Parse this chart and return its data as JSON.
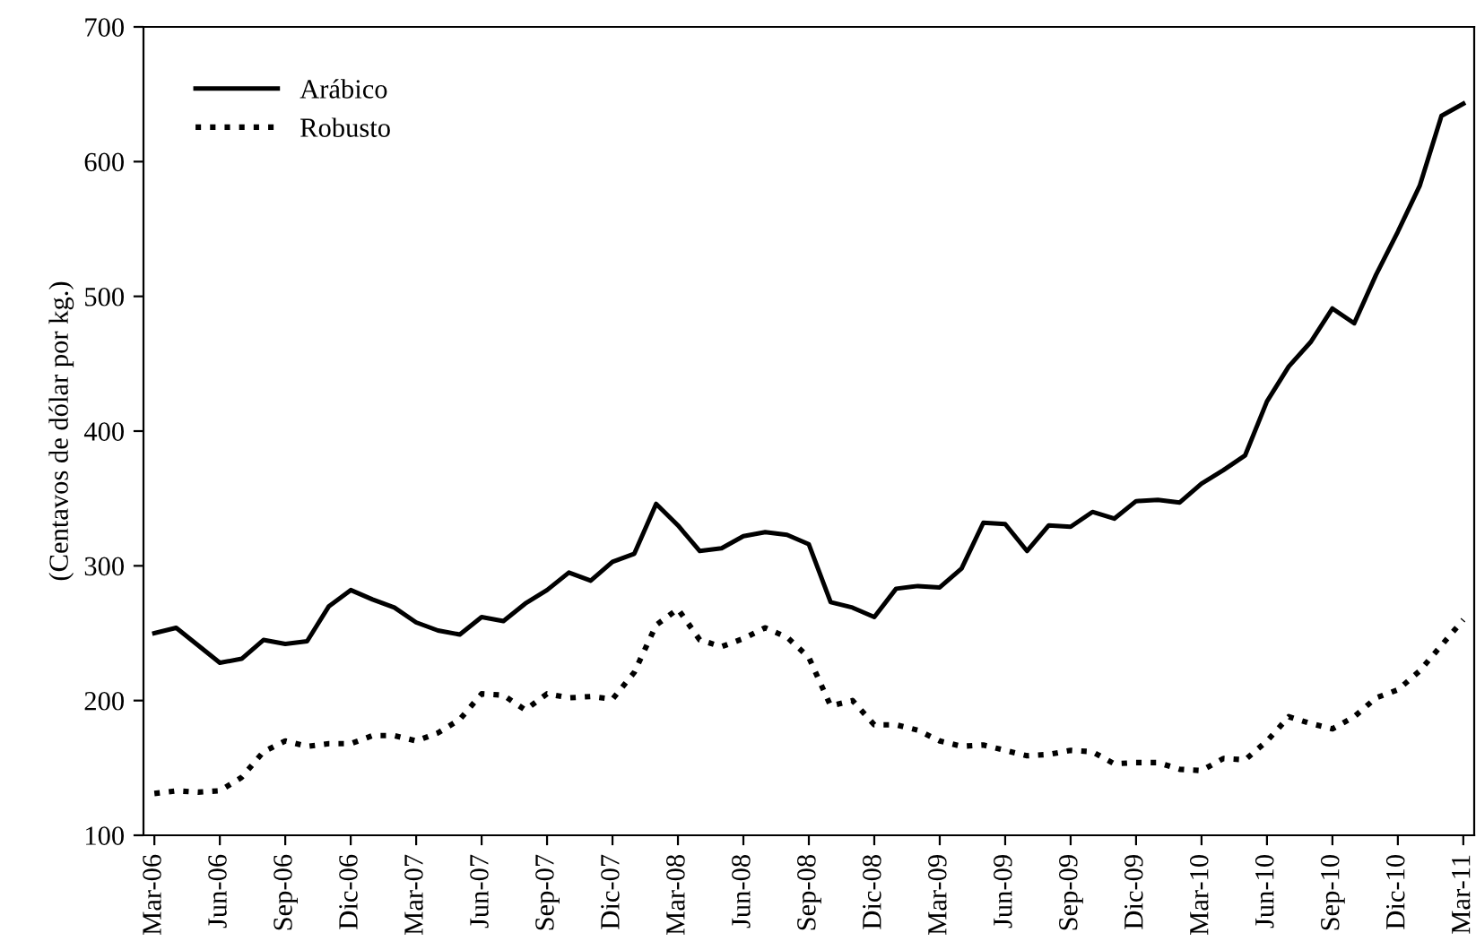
{
  "chart_data": {
    "type": "line",
    "ylabel": "(Centavos de dólar por kg.)",
    "categories": [
      "Mar-06",
      null,
      null,
      "Jun-06",
      null,
      null,
      "Sep-06",
      null,
      null,
      "Dic-06",
      null,
      null,
      "Mar-07",
      null,
      null,
      "Jun-07",
      null,
      null,
      "Sep-07",
      null,
      null,
      "Dic-07",
      null,
      null,
      "Mar-08",
      null,
      null,
      "Jun-08",
      null,
      null,
      "Sep-08",
      null,
      null,
      "Dic-08",
      null,
      null,
      "Mar-09",
      null,
      null,
      "Jun-09",
      null,
      null,
      "Sep-09",
      null,
      null,
      "Dic-09",
      null,
      null,
      "Mar-10",
      null,
      null,
      "Jun-10",
      null,
      null,
      "Sep-10",
      null,
      null,
      "Dic-10",
      null,
      null,
      "Mar-11"
    ],
    "series": [
      {
        "name": "Arábico",
        "color": "#000000",
        "line_style": "solid",
        "values": [
          250,
          254,
          241,
          228,
          231,
          245,
          242,
          244,
          270,
          282,
          275,
          269,
          258,
          252,
          249,
          262,
          259,
          272,
          282,
          295,
          289,
          303,
          309,
          346,
          330,
          311,
          313,
          322,
          325,
          323,
          316,
          273,
          269,
          262,
          283,
          285,
          284,
          298,
          332,
          331,
          311,
          330,
          329,
          340,
          335,
          348,
          349,
          347,
          361,
          371,
          382,
          422,
          448,
          466,
          491,
          480,
          516,
          548,
          582,
          634,
          643
        ]
      },
      {
        "name": "Robusto",
        "color": "#000000",
        "line_style": "dotted",
        "values": [
          131,
          133,
          132,
          133,
          143,
          162,
          170,
          166,
          168,
          168,
          174,
          174,
          170,
          176,
          186,
          205,
          204,
          193,
          205,
          202,
          203,
          201,
          221,
          256,
          268,
          245,
          240,
          246,
          254,
          247,
          232,
          196,
          200,
          182,
          182,
          178,
          170,
          166,
          167,
          163,
          159,
          160,
          163,
          162,
          153,
          154,
          154,
          149,
          148,
          157,
          156,
          170,
          188,
          183,
          179,
          188,
          202,
          208,
          222,
          241,
          260
        ]
      }
    ],
    "ylim": [
      100,
      700
    ],
    "yticks": [
      100,
      200,
      300,
      400,
      500,
      600,
      700
    ],
    "grid": false,
    "legend": "top left",
    "marker": "none"
  }
}
